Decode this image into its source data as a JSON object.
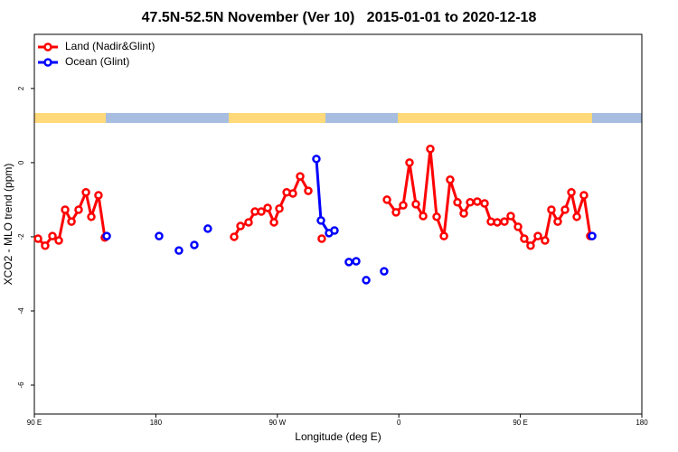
{
  "chart_data": {
    "type": "line",
    "title": "47.5N-52.5N November (Ver 10)   2015-01-01 to 2020-12-18",
    "xlabel": "Longitude (deg E)",
    "ylabel": "XCO2 - MLO trend (ppm)",
    "xlim": [
      90,
      540
    ],
    "ylim": [
      -6.78,
      3.46
    ],
    "xticks": [
      {
        "value": 90,
        "label": "90 E"
      },
      180,
      {
        "value": 270,
        "label": "90 W"
      },
      {
        "value": 360,
        "label": "0"
      },
      {
        "value": 450,
        "label": "90 E"
      },
      {
        "value": 540,
        "label": "180"
      }
    ],
    "yticks": [
      2,
      0,
      -2,
      -4,
      -6
    ],
    "legend": "top-left",
    "series": [
      {
        "name": "Land (Nadir&Glint)",
        "color": "#ff0000",
        "x": [
          92.7,
          98.0,
          103.4,
          108.1,
          112.8,
          117.5,
          122.8,
          128.2,
          132.2,
          137.5,
          142.2,
          null,
          238.0,
          242.7,
          248.7,
          253.4,
          258.1,
          262.8,
          267.5,
          271.5,
          276.9,
          281.5,
          286.9,
          292.9,
          null,
          302.9,
          null,
          351.2,
          357.9,
          363.2,
          367.9,
          372.6,
          378.0,
          383.3,
          388.0,
          393.4,
          398.0,
          403.4,
          408.1,
          412.8,
          418.1,
          423.5,
          428.2,
          432.9,
          438.2,
          442.9,
          448.3,
          452.9,
          457.6,
          463.0,
          468.3,
          473.0,
          477.7,
          483.1,
          487.8,
          491.8,
          497.1,
          501.8
        ],
        "values": [
          -2.05,
          -2.24,
          -1.98,
          -2.1,
          -1.27,
          -1.59,
          -1.27,
          -0.8,
          -1.46,
          -0.88,
          -2.02,
          null,
          -2.0,
          -1.71,
          -1.61,
          -1.32,
          -1.32,
          -1.22,
          -1.61,
          -1.24,
          -0.8,
          -0.83,
          -0.37,
          -0.76,
          null,
          -2.05,
          null,
          -1.0,
          -1.34,
          -1.15,
          0.0,
          -1.12,
          -1.44,
          0.37,
          -1.46,
          -1.98,
          -0.46,
          -1.07,
          -1.37,
          -1.07,
          -1.05,
          -1.1,
          -1.59,
          -1.61,
          -1.59,
          -1.44,
          -1.73,
          -2.05,
          -2.24,
          -1.98,
          -2.1,
          -1.27,
          -1.59,
          -1.27,
          -0.8,
          -1.46,
          -0.88,
          -1.98
        ]
      },
      {
        "name": "Ocean (Glint)",
        "color": "#0000ff",
        "x": [
          143.6,
          null,
          182.4,
          null,
          197.1,
          null,
          208.5,
          null,
          218.5,
          null,
          298.9,
          302.3,
          308.3,
          312.3,
          null,
          323.0,
          null,
          328.4,
          null,
          335.8,
          null,
          349.1,
          null,
          503.2
        ],
        "values": [
          -1.98,
          null,
          -1.98,
          null,
          -2.37,
          null,
          -2.22,
          null,
          -1.78,
          null,
          0.1,
          -1.56,
          -1.9,
          -1.83,
          null,
          -2.68,
          null,
          -2.66,
          null,
          -3.17,
          null,
          -2.93,
          null,
          -1.98
        ]
      }
    ]
  }
}
